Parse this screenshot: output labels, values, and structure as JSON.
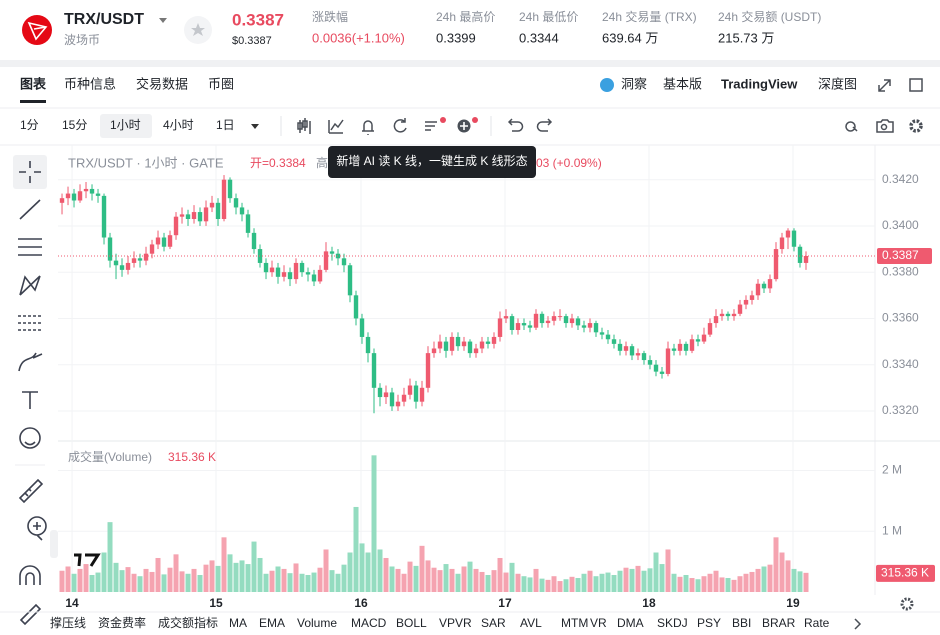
{
  "header": {
    "pair": "TRX/USDT",
    "coin_name": "波场币",
    "price": "0.3387",
    "price_usd": "$0.3387",
    "stats": [
      {
        "label": "涨跌幅",
        "value": "0.0036(+1.10%)"
      },
      {
        "label": "24h 最高价",
        "value": "0.3399"
      },
      {
        "label": "24h 最低价",
        "value": "0.3344"
      },
      {
        "label": "24h 交易量 (TRX)",
        "value": "639.64 万"
      },
      {
        "label": "24h 交易额 (USDT)",
        "value": "215.73 万"
      }
    ]
  },
  "tabs": [
    "图表",
    "币种信息",
    "交易数据",
    "币圈"
  ],
  "view_options": [
    "洞察",
    "基本版",
    "TradingView",
    "深度图"
  ],
  "intervals": [
    "1分",
    "15分",
    "1小时",
    "4小时",
    "1日"
  ],
  "tooltip": "新增 AI 读 K 线，一键生成 K 线形态",
  "indicators": [
    "撑压线",
    "资金费率",
    "成交额指标",
    "MA",
    "EMA",
    "Volume",
    "MACD",
    "BOLL",
    "VPVR",
    "SAR",
    "AVL",
    "MTM",
    "VR",
    "DMA",
    "SKDJ",
    "PSY",
    "BBI",
    "BRAR",
    "Rate"
  ],
  "chart_data": {
    "type": "candlestick",
    "legend": "TRX/USDT · 1小时 · GATE",
    "open_label": "开=0.3384",
    "high_label": "高",
    "change_label": "03 (+0.09%)",
    "up_color": "#ef5a6f",
    "down_color": "#2ebd85",
    "grid": true,
    "candles": [
      [
        0.341,
        0.3414,
        0.3405,
        0.3412
      ],
      [
        0.3412,
        0.3417,
        0.3409,
        0.3414
      ],
      [
        0.3414,
        0.3416,
        0.3408,
        0.3411
      ],
      [
        0.3411,
        0.3418,
        0.341,
        0.3415
      ],
      [
        0.3415,
        0.3419,
        0.3412,
        0.3416
      ],
      [
        0.3416,
        0.3418,
        0.3411,
        0.3414
      ],
      [
        0.3414,
        0.3416,
        0.341,
        0.3413
      ],
      [
        0.3413,
        0.3414,
        0.3392,
        0.3395
      ],
      [
        0.3395,
        0.3397,
        0.3382,
        0.3385
      ],
      [
        0.3385,
        0.3388,
        0.3377,
        0.3383
      ],
      [
        0.3383,
        0.3386,
        0.3378,
        0.3381
      ],
      [
        0.3381,
        0.3387,
        0.3379,
        0.3384
      ],
      [
        0.3384,
        0.3389,
        0.3382,
        0.3386
      ],
      [
        0.3386,
        0.3388,
        0.3382,
        0.3385
      ],
      [
        0.3385,
        0.3391,
        0.3383,
        0.3388
      ],
      [
        0.3388,
        0.3394,
        0.3386,
        0.3392
      ],
      [
        0.3392,
        0.3398,
        0.339,
        0.3395
      ],
      [
        0.3395,
        0.3397,
        0.3389,
        0.3391
      ],
      [
        0.3391,
        0.3398,
        0.339,
        0.3396
      ],
      [
        0.3396,
        0.3406,
        0.3394,
        0.3404
      ],
      [
        0.3404,
        0.3408,
        0.3401,
        0.3405
      ],
      [
        0.3405,
        0.3407,
        0.34,
        0.3403
      ],
      [
        0.3403,
        0.3409,
        0.3401,
        0.3406
      ],
      [
        0.3406,
        0.3408,
        0.34,
        0.3402
      ],
      [
        0.3402,
        0.3411,
        0.34,
        0.3408
      ],
      [
        0.3408,
        0.3413,
        0.3406,
        0.341
      ],
      [
        0.341,
        0.3412,
        0.34,
        0.3403
      ],
      [
        0.3403,
        0.3422,
        0.3402,
        0.342
      ],
      [
        0.342,
        0.3421,
        0.341,
        0.3412
      ],
      [
        0.3412,
        0.3414,
        0.3405,
        0.3408
      ],
      [
        0.3408,
        0.341,
        0.3402,
        0.3405
      ],
      [
        0.3405,
        0.3407,
        0.3395,
        0.3397
      ],
      [
        0.3397,
        0.3399,
        0.3388,
        0.339
      ],
      [
        0.339,
        0.3392,
        0.3382,
        0.3384
      ],
      [
        0.3384,
        0.3386,
        0.3377,
        0.338
      ],
      [
        0.338,
        0.3385,
        0.3378,
        0.3382
      ],
      [
        0.3382,
        0.3384,
        0.3375,
        0.3378
      ],
      [
        0.3378,
        0.3383,
        0.3376,
        0.338
      ],
      [
        0.338,
        0.3382,
        0.3374,
        0.3377
      ],
      [
        0.3377,
        0.3386,
        0.3375,
        0.3384
      ],
      [
        0.3384,
        0.3385,
        0.3378,
        0.338
      ],
      [
        0.338,
        0.3382,
        0.3376,
        0.3379
      ],
      [
        0.3379,
        0.3381,
        0.3374,
        0.3376
      ],
      [
        0.3376,
        0.3383,
        0.3375,
        0.3381
      ],
      [
        0.3381,
        0.3393,
        0.338,
        0.3389
      ],
      [
        0.3389,
        0.3391,
        0.3385,
        0.3388
      ],
      [
        0.3388,
        0.339,
        0.3383,
        0.3386
      ],
      [
        0.3386,
        0.3388,
        0.338,
        0.3383
      ],
      [
        0.3383,
        0.3384,
        0.3367,
        0.337
      ],
      [
        0.337,
        0.3372,
        0.3357,
        0.336
      ],
      [
        0.336,
        0.3362,
        0.3349,
        0.3352
      ],
      [
        0.3352,
        0.3354,
        0.3341,
        0.3345
      ],
      [
        0.3345,
        0.3347,
        0.3319,
        0.333
      ],
      [
        0.333,
        0.3332,
        0.3322,
        0.3326
      ],
      [
        0.3326,
        0.3331,
        0.3323,
        0.3328
      ],
      [
        0.3328,
        0.333,
        0.332,
        0.3322
      ],
      [
        0.3322,
        0.3327,
        0.332,
        0.3324
      ],
      [
        0.3324,
        0.333,
        0.3322,
        0.3327
      ],
      [
        0.3327,
        0.3334,
        0.3325,
        0.3331
      ],
      [
        0.3331,
        0.3333,
        0.3321,
        0.3324
      ],
      [
        0.3324,
        0.3333,
        0.3322,
        0.333
      ],
      [
        0.333,
        0.3348,
        0.3328,
        0.3345
      ],
      [
        0.3345,
        0.335,
        0.3343,
        0.3347
      ],
      [
        0.3347,
        0.3353,
        0.3345,
        0.335
      ],
      [
        0.335,
        0.3352,
        0.3343,
        0.3346
      ],
      [
        0.3346,
        0.3354,
        0.3344,
        0.3352
      ],
      [
        0.3352,
        0.3354,
        0.3346,
        0.3348
      ],
      [
        0.3348,
        0.3352,
        0.3346,
        0.335
      ],
      [
        0.335,
        0.3351,
        0.3343,
        0.3345
      ],
      [
        0.3345,
        0.3349,
        0.3343,
        0.3347
      ],
      [
        0.3347,
        0.3352,
        0.3345,
        0.335
      ],
      [
        0.335,
        0.3352,
        0.3347,
        0.3349
      ],
      [
        0.3349,
        0.3354,
        0.3347,
        0.3352
      ],
      [
        0.3352,
        0.3363,
        0.335,
        0.336
      ],
      [
        0.336,
        0.3364,
        0.3358,
        0.3361
      ],
      [
        0.3361,
        0.3362,
        0.3353,
        0.3355
      ],
      [
        0.3355,
        0.336,
        0.3353,
        0.3358
      ],
      [
        0.3358,
        0.336,
        0.3355,
        0.3357
      ],
      [
        0.3357,
        0.3359,
        0.3354,
        0.3356
      ],
      [
        0.3356,
        0.3364,
        0.3355,
        0.3362
      ],
      [
        0.3362,
        0.3363,
        0.3356,
        0.3358
      ],
      [
        0.3358,
        0.3361,
        0.3356,
        0.3359
      ],
      [
        0.3359,
        0.3363,
        0.3357,
        0.3361
      ],
      [
        0.3361,
        0.3364,
        0.3359,
        0.3361
      ],
      [
        0.3361,
        0.3362,
        0.3356,
        0.3358
      ],
      [
        0.3358,
        0.3362,
        0.3356,
        0.336
      ],
      [
        0.336,
        0.3361,
        0.3355,
        0.3357
      ],
      [
        0.3357,
        0.3359,
        0.3354,
        0.3356
      ],
      [
        0.3356,
        0.336,
        0.3354,
        0.3358
      ],
      [
        0.3358,
        0.3359,
        0.3352,
        0.3354
      ],
      [
        0.3354,
        0.3356,
        0.3351,
        0.3353
      ],
      [
        0.3353,
        0.3355,
        0.3349,
        0.3351
      ],
      [
        0.3351,
        0.3353,
        0.3347,
        0.3349
      ],
      [
        0.3349,
        0.3351,
        0.3344,
        0.3346
      ],
      [
        0.3346,
        0.335,
        0.3344,
        0.3348
      ],
      [
        0.3348,
        0.3349,
        0.3342,
        0.3344
      ],
      [
        0.3344,
        0.3347,
        0.3342,
        0.3345
      ],
      [
        0.3345,
        0.3346,
        0.334,
        0.3342
      ],
      [
        0.3342,
        0.3344,
        0.3338,
        0.334
      ],
      [
        0.334,
        0.3342,
        0.3335,
        0.3337
      ],
      [
        0.3337,
        0.3339,
        0.3334,
        0.3336
      ],
      [
        0.3336,
        0.335,
        0.3335,
        0.3347
      ],
      [
        0.3347,
        0.3349,
        0.3344,
        0.3346
      ],
      [
        0.3346,
        0.3351,
        0.3344,
        0.3349
      ],
      [
        0.3349,
        0.335,
        0.3344,
        0.3346
      ],
      [
        0.3346,
        0.3353,
        0.3345,
        0.3351
      ],
      [
        0.3351,
        0.3353,
        0.3348,
        0.335
      ],
      [
        0.335,
        0.3356,
        0.3349,
        0.3353
      ],
      [
        0.3353,
        0.336,
        0.3352,
        0.3358
      ],
      [
        0.3358,
        0.3364,
        0.3356,
        0.3361
      ],
      [
        0.3361,
        0.3364,
        0.3359,
        0.3362
      ],
      [
        0.3362,
        0.3363,
        0.3359,
        0.3361
      ],
      [
        0.3361,
        0.3364,
        0.3359,
        0.3362
      ],
      [
        0.3362,
        0.3368,
        0.3361,
        0.3366
      ],
      [
        0.3366,
        0.337,
        0.3364,
        0.3368
      ],
      [
        0.3368,
        0.3372,
        0.3366,
        0.337
      ],
      [
        0.337,
        0.3377,
        0.3368,
        0.3375
      ],
      [
        0.3375,
        0.3376,
        0.3371,
        0.3373
      ],
      [
        0.3373,
        0.3379,
        0.3371,
        0.3377
      ],
      [
        0.3377,
        0.3393,
        0.3376,
        0.339
      ],
      [
        0.339,
        0.3397,
        0.3388,
        0.3395
      ],
      [
        0.3395,
        0.3399,
        0.339,
        0.3398
      ],
      [
        0.3398,
        0.3399,
        0.3389,
        0.3391
      ],
      [
        0.3391,
        0.3392,
        0.3382,
        0.3384
      ],
      [
        0.3384,
        0.3389,
        0.3381,
        0.3387
      ]
    ],
    "xlim": [
      -0.67,
      135.5
    ],
    "xticks": [
      {
        "value": 1.67,
        "label": "14"
      },
      {
        "value": 25.67,
        "label": "15"
      },
      {
        "value": 49.83,
        "label": "16"
      },
      {
        "value": 73.83,
        "label": "17"
      },
      {
        "value": 97.83,
        "label": "18"
      },
      {
        "value": 121.83,
        "label": "19"
      }
    ],
    "ylim": [
      0.3307,
      0.3435
    ],
    "yticks": [
      {
        "value": 0.332,
        "label": "0.3320"
      },
      {
        "value": 0.334,
        "label": "0.3340"
      },
      {
        "value": 0.336,
        "label": "0.3360"
      },
      {
        "value": 0.338,
        "label": "0.3380"
      },
      {
        "value": 0.34,
        "label": "0.3400"
      },
      {
        "value": 0.342,
        "label": "0.3420"
      }
    ],
    "last_price": 0.3387,
    "volume": {
      "title": "成交量(Volume)",
      "last_label": "315.36 K",
      "up_color": "#f5a3b0",
      "down_color": "#94dcc0",
      "ylim": [
        0,
        2420000
      ],
      "yticks": [
        {
          "value": 1000000,
          "label": "1 M"
        },
        {
          "value": 2000000,
          "label": "2 M"
        }
      ],
      "values": [
        350000,
        420000,
        300000,
        380000,
        460000,
        280000,
        320000,
        650000,
        1150000,
        480000,
        360000,
        410000,
        300000,
        260000,
        380000,
        330000,
        560000,
        290000,
        400000,
        620000,
        340000,
        300000,
        380000,
        280000,
        450000,
        520000,
        430000,
        900000,
        620000,
        480000,
        520000,
        460000,
        830000,
        560000,
        300000,
        350000,
        420000,
        380000,
        310000,
        470000,
        300000,
        280000,
        320000,
        400000,
        700000,
        360000,
        300000,
        450000,
        650000,
        1400000,
        800000,
        650000,
        2250000,
        700000,
        560000,
        420000,
        380000,
        300000,
        500000,
        430000,
        760000,
        520000,
        400000,
        360000,
        460000,
        380000,
        300000,
        420000,
        500000,
        380000,
        330000,
        280000,
        360000,
        560000,
        320000,
        480000,
        300000,
        260000,
        240000,
        380000,
        220000,
        200000,
        260000,
        180000,
        210000,
        250000,
        230000,
        300000,
        350000,
        260000,
        300000,
        320000,
        280000,
        350000,
        400000,
        380000,
        430000,
        350000,
        390000,
        650000,
        460000,
        700000,
        300000,
        250000,
        280000,
        230000,
        210000,
        260000,
        300000,
        350000,
        240000,
        230000,
        200000,
        260000,
        300000,
        330000,
        380000,
        420000,
        450000,
        900000,
        650000,
        520000,
        380000,
        340000,
        315360
      ]
    }
  }
}
